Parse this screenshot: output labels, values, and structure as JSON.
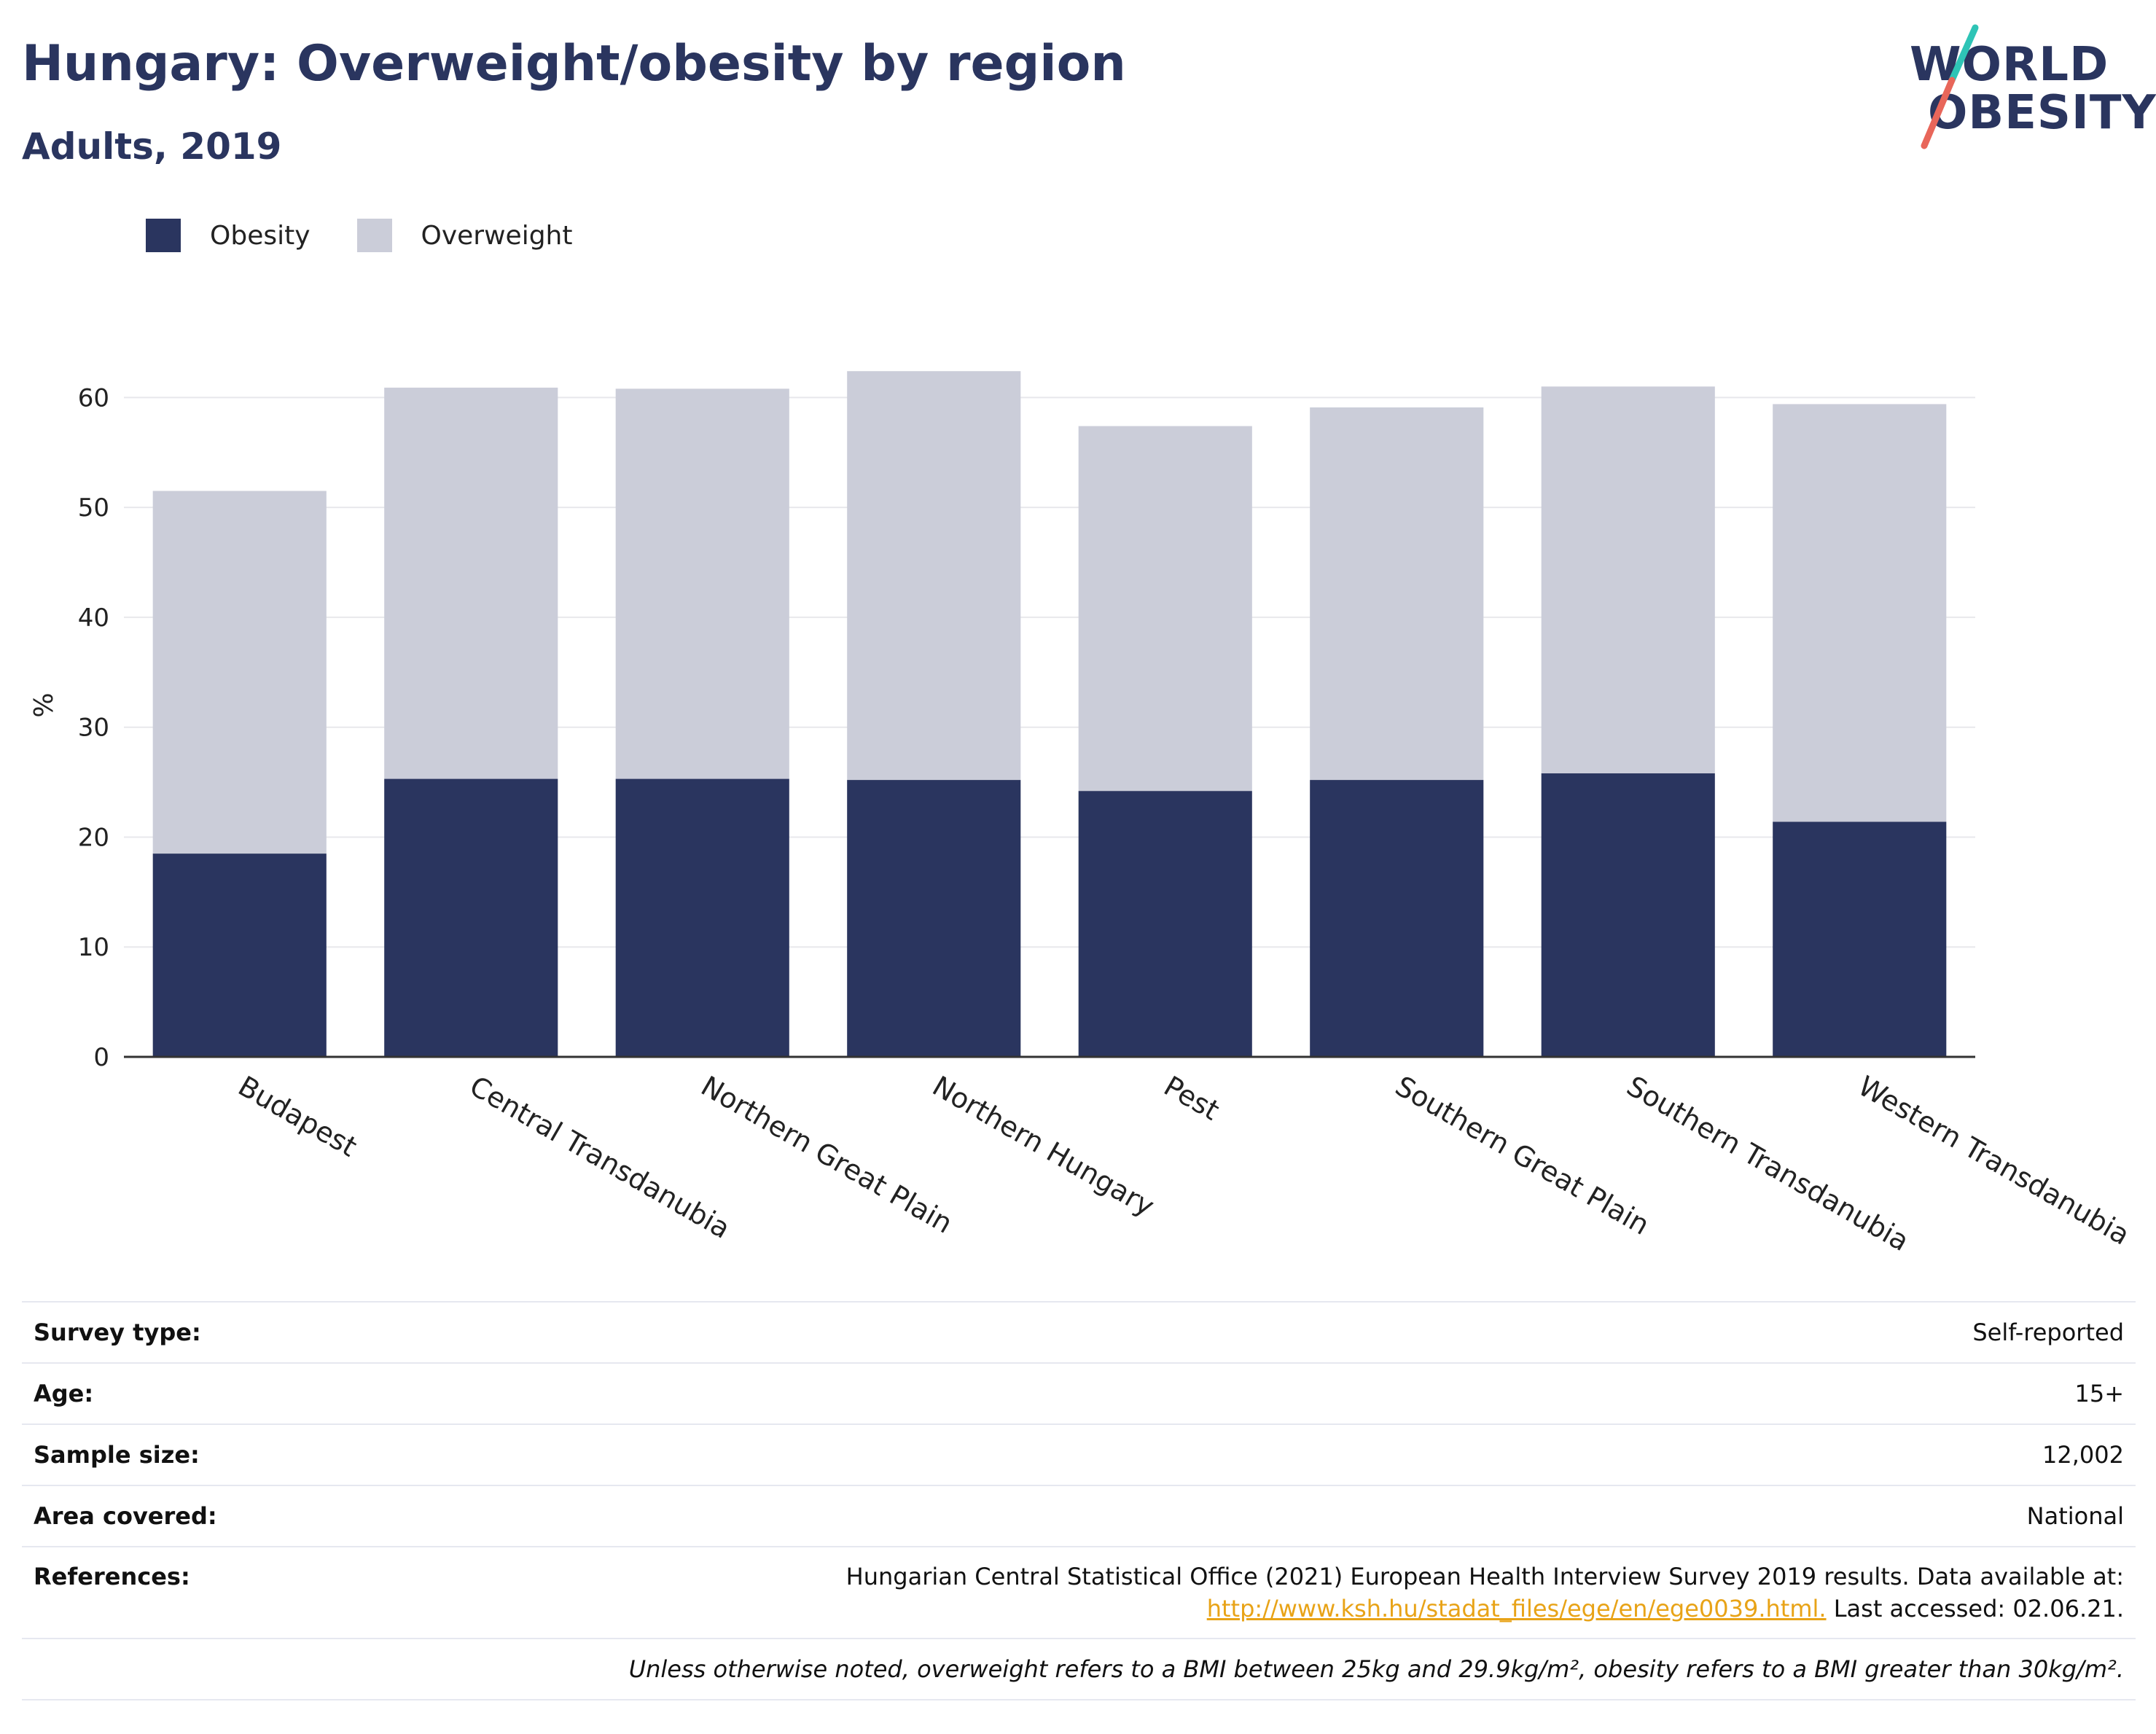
{
  "header": {
    "title": "Hungary: Overweight/obesity by region",
    "subtitle": "Adults, 2019"
  },
  "logo": {
    "line1": "WORLD",
    "line2": "OBESITY",
    "slash_color_top": "#2ec4b6",
    "slash_color_bottom": "#e8665a"
  },
  "legend": [
    {
      "label": "Obesity",
      "color": "#2a355f"
    },
    {
      "label": "Overweight",
      "color": "#cbcdd9"
    }
  ],
  "chart_data": {
    "type": "bar",
    "stacked": true,
    "ylabel": "%",
    "ylim": [
      0,
      65
    ],
    "yticks": [
      0,
      10,
      20,
      30,
      40,
      50,
      60
    ],
    "grid": true,
    "categories": [
      "Budapest",
      "Central Transdanubia",
      "Northern Great Plain",
      "Northern Hungary",
      "Pest",
      "Southern Great Plain",
      "Southern Transdanubia",
      "Western Transdanubia"
    ],
    "series": [
      {
        "name": "Obesity",
        "color": "#2a355f",
        "values": [
          18.5,
          25.3,
          25.3,
          25.2,
          24.2,
          25.2,
          25.8,
          21.4
        ]
      },
      {
        "name": "Overweight",
        "color": "#cbcdd9",
        "values": [
          33.0,
          35.6,
          35.5,
          37.2,
          33.2,
          33.9,
          35.2,
          38.0
        ]
      }
    ]
  },
  "info": {
    "survey_type_label": "Survey type:",
    "survey_type_value": "Self-reported",
    "age_label": "Age:",
    "age_value": "15+",
    "sample_label": "Sample size:",
    "sample_value": "12,002",
    "area_label": "Area covered:",
    "area_value": "National",
    "refs_label": "References:",
    "refs_line1": "Hungarian Central Statistical Office (2021) European Health Interview Survey 2019 results. Data available at:",
    "refs_link": "http://www.ksh.hu/stadat_files/ege/en/ege0039.html.",
    "refs_tail": " Last accessed: 02.06.21.",
    "note": "Unless otherwise noted, overweight refers to a BMI between 25kg and 29.9kg/m², obesity refers to a BMI greater than 30kg/m²."
  }
}
